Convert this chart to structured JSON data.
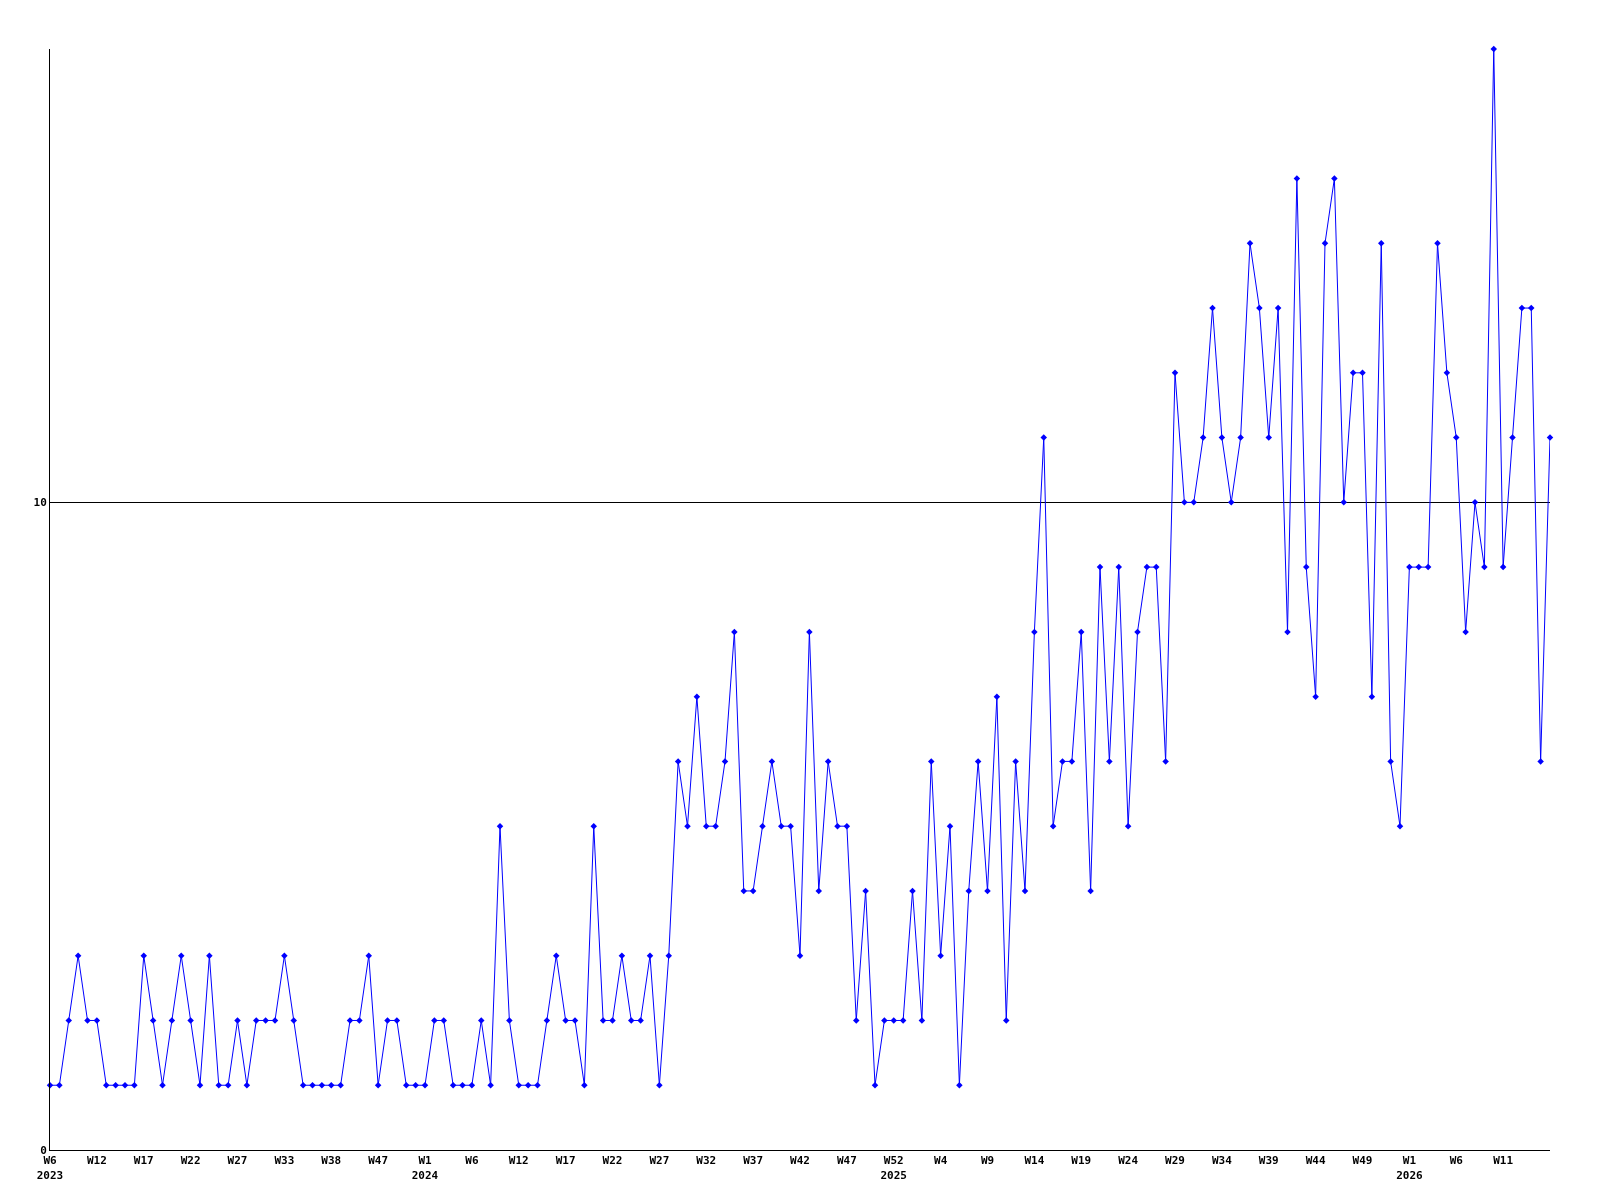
{
  "chart_data": {
    "type": "line",
    "categories": [
      "W6\n2023",
      null,
      null,
      null,
      null,
      "W12",
      null,
      null,
      null,
      null,
      "W17",
      null,
      null,
      null,
      null,
      "W22",
      null,
      null,
      null,
      null,
      "W27",
      null,
      null,
      null,
      null,
      "W33",
      null,
      null,
      null,
      null,
      "W38",
      null,
      null,
      null,
      null,
      "W47",
      null,
      null,
      null,
      null,
      "W1\n2024",
      null,
      null,
      null,
      null,
      "W6",
      null,
      null,
      null,
      null,
      "W12",
      null,
      null,
      null,
      null,
      "W17",
      null,
      null,
      null,
      null,
      "W22",
      null,
      null,
      null,
      null,
      "W27",
      null,
      null,
      null,
      null,
      "W32",
      null,
      null,
      null,
      null,
      "W37",
      null,
      null,
      null,
      null,
      "W42",
      null,
      null,
      null,
      null,
      "W47",
      null,
      null,
      null,
      null,
      "W52\n2025",
      null,
      null,
      null,
      null,
      "W4",
      null,
      null,
      null,
      null,
      "W9",
      null,
      null,
      null,
      null,
      "W14",
      null,
      null,
      null,
      null,
      "W19",
      null,
      null,
      null,
      null,
      "W24",
      null,
      null,
      null,
      null,
      "W29",
      null,
      null,
      null,
      null,
      "W34",
      null,
      null,
      null,
      null,
      "W39",
      null,
      null,
      null,
      null,
      "W44",
      null,
      null,
      null,
      null,
      "W49",
      null,
      null,
      null,
      null,
      "W1\n2026",
      null,
      null,
      null,
      null,
      "W6",
      null,
      null,
      null,
      null,
      "W11",
      null,
      null,
      null,
      null,
      null
    ],
    "series": [
      {
        "color": "#0000ff",
        "values": [
          1,
          1,
          2,
          3,
          2,
          2,
          1,
          1,
          1,
          1,
          3,
          2,
          1,
          2,
          3,
          2,
          1,
          3,
          1,
          1,
          2,
          1,
          2,
          2,
          2,
          3,
          2,
          1,
          1,
          1,
          1,
          1,
          2,
          2,
          3,
          1,
          2,
          2,
          1,
          1,
          1,
          2,
          2,
          1,
          1,
          1,
          2,
          1,
          5,
          2,
          1,
          1,
          1,
          2,
          3,
          2,
          2,
          1,
          5,
          2,
          2,
          3,
          2,
          2,
          3,
          1,
          3,
          6,
          5,
          7,
          5,
          5,
          6,
          8,
          4,
          4,
          5,
          6,
          5,
          5,
          3,
          8,
          4,
          6,
          5,
          5,
          2,
          4,
          1,
          2,
          2,
          2,
          4,
          2,
          6,
          3,
          5,
          1,
          4,
          6,
          4,
          7,
          2,
          6,
          4,
          8,
          11,
          5,
          6,
          6,
          8,
          4,
          9,
          6,
          9,
          5,
          8,
          9,
          9,
          6,
          12,
          10,
          10,
          11,
          13,
          11,
          10,
          11,
          14,
          13,
          11,
          13,
          8,
          15,
          9,
          7,
          14,
          15,
          10,
          12,
          12,
          7,
          14,
          6,
          5,
          9,
          9,
          9,
          14,
          12,
          11,
          8,
          10,
          9,
          17,
          9,
          11,
          13,
          13,
          6,
          11
        ]
      }
    ],
    "ylim": [
      0,
      17
    ],
    "yticks": [
      0,
      10
    ],
    "grid": "y",
    "marker": "diamond",
    "line_style": "solid",
    "legend": false
  }
}
